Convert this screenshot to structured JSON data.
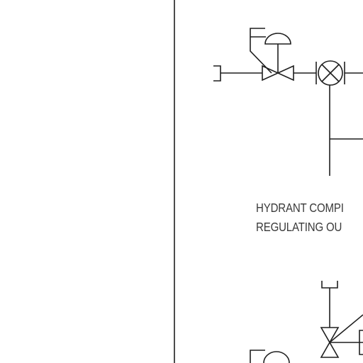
{
  "caption": {
    "line1": "HYDRANT COMPI",
    "line2": "REGULATING OU"
  },
  "colors": {
    "background": "#ffffff",
    "line": "#1f1f1f",
    "text": "#3a3a3a"
  },
  "symbols": [
    "pressure-regulating-valve-icon",
    "flow-meter-icon",
    "pipe-cap-icon",
    "diaphragm-actuator-icon",
    "gate-valve-icon"
  ]
}
